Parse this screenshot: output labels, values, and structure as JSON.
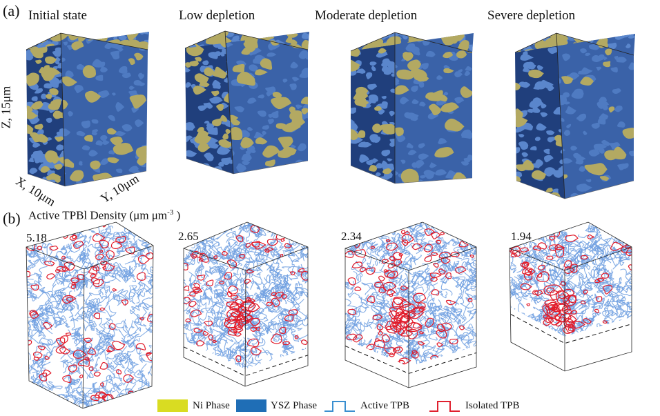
{
  "panels": {
    "a": {
      "label": "(a)",
      "titles": [
        "Initial state",
        "Low depletion",
        "Moderate depletion",
        "Severe depletion"
      ],
      "axes": {
        "z": "Z, 15μm",
        "x": "X, 10μm",
        "y": "Y, 10μm"
      }
    },
    "b": {
      "label": "(b)",
      "density_label_main": "Active TPBl Density (μm μm",
      "density_label_sup": "-3",
      "density_label_end": " )",
      "values": [
        "5.18",
        "2.65",
        "2.34",
        "1.94"
      ]
    }
  },
  "legend": {
    "items": [
      {
        "label": "Ni Phase",
        "color": "#d9dc22"
      },
      {
        "label": "YSZ Phase",
        "color": "#1f6eb6"
      },
      {
        "label": "Active TPB",
        "color": "#3a8fd0"
      },
      {
        "label": "Isolated TPB",
        "color": "#e0202e"
      }
    ]
  },
  "colors": {
    "ysz": "#3a62a8",
    "ysz_dark": "#203f7c",
    "ni": "#b3a962",
    "active_line": "#6f9fe0",
    "isolated_line": "#e11b2a"
  }
}
